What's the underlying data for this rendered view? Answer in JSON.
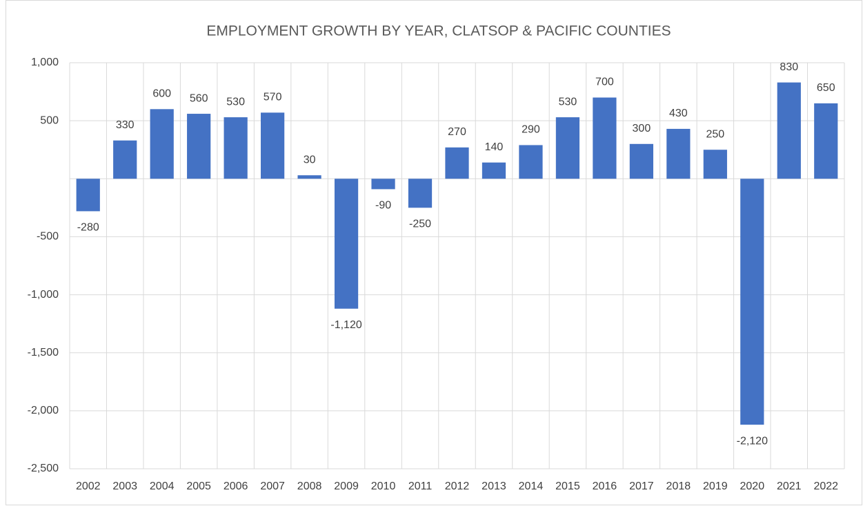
{
  "chart_data": {
    "type": "bar",
    "title": "EMPLOYMENT GROWTH BY YEAR, CLATSOP & PACIFIC COUNTIES",
    "categories": [
      "2002",
      "2003",
      "2004",
      "2005",
      "2006",
      "2007",
      "2008",
      "2009",
      "2010",
      "2011",
      "2012",
      "2013",
      "2014",
      "2015",
      "2016",
      "2017",
      "2018",
      "2019",
      "2020",
      "2021",
      "2022"
    ],
    "values": [
      -280,
      330,
      600,
      560,
      530,
      570,
      30,
      -1120,
      -90,
      -250,
      270,
      140,
      290,
      530,
      700,
      300,
      430,
      250,
      -2120,
      830,
      650
    ],
    "value_labels": [
      "-280",
      "330",
      "600",
      "560",
      "530",
      "570",
      "30",
      "-1,120",
      "-90",
      "-250",
      "270",
      "140",
      "290",
      "530",
      "700",
      "300",
      "430",
      "250",
      "-2,120",
      "830",
      "650"
    ],
    "color": "#4472c4",
    "ylim": [
      -2500,
      1000
    ],
    "yticks": [
      {
        "value": 1000,
        "label": "1,000"
      },
      500,
      -500,
      {
        "value": -1000,
        "label": "-1,000"
      },
      {
        "value": -1500,
        "label": "-1,500"
      },
      {
        "value": -2000,
        "label": "-2,000"
      },
      {
        "value": -2500,
        "label": "-2,500"
      }
    ],
    "grid": true
  }
}
